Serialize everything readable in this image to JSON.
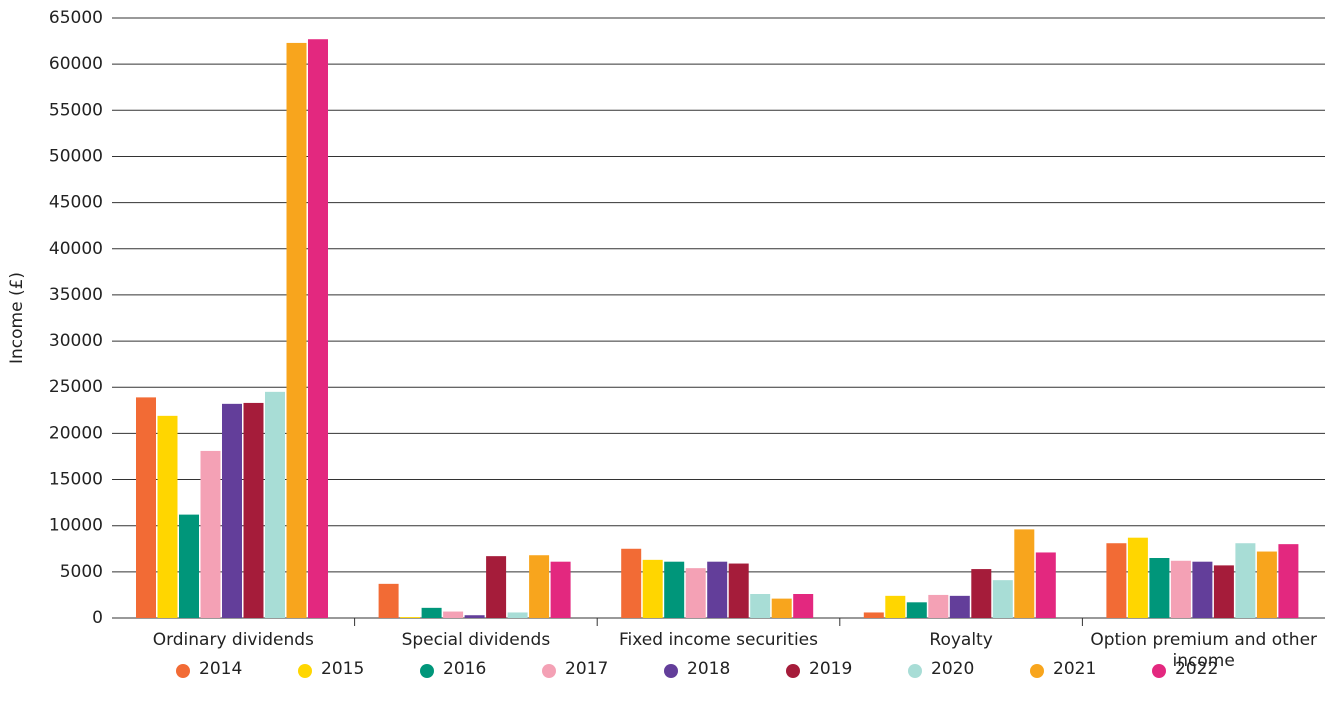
{
  "chart_data": {
    "type": "bar",
    "y_label": "Income (£)",
    "categories": [
      "Ordinary dividends",
      "Special dividends",
      "Fixed income securities",
      "Royalty",
      "Option premium and other income"
    ],
    "series": [
      {
        "name": "2014",
        "color": "#f26b35",
        "values": [
          23900,
          3700,
          7500,
          600,
          8100
        ]
      },
      {
        "name": "2015",
        "color": "#ffd600",
        "values": [
          21900,
          100,
          6300,
          2400,
          8700
        ]
      },
      {
        "name": "2016",
        "color": "#00967a",
        "values": [
          11200,
          1100,
          6100,
          1700,
          6500
        ]
      },
      {
        "name": "2017",
        "color": "#f4a1b5",
        "values": [
          18100,
          700,
          5400,
          2500,
          6200
        ]
      },
      {
        "name": "2018",
        "color": "#633e9a",
        "values": [
          23200,
          300,
          6100,
          2400,
          6100
        ]
      },
      {
        "name": "2019",
        "color": "#a51c3a",
        "values": [
          23300,
          6700,
          5900,
          5300,
          5700
        ]
      },
      {
        "name": "2020",
        "color": "#a8ddd6",
        "values": [
          24500,
          600,
          2600,
          4100,
          8100
        ]
      },
      {
        "name": "2021",
        "color": "#f8a51d",
        "values": [
          62300,
          6800,
          2100,
          9600,
          7200
        ]
      },
      {
        "name": "2022",
        "color": "#e3287f",
        "values": [
          62700,
          6100,
          2600,
          7100,
          8000
        ]
      }
    ],
    "ylim": [
      0,
      65000
    ],
    "yticks": [
      0,
      5000,
      10000,
      15000,
      20000,
      25000,
      30000,
      35000,
      40000,
      45000,
      50000,
      55000,
      60000,
      65000
    ],
    "grid": true,
    "legend": "bottom"
  }
}
